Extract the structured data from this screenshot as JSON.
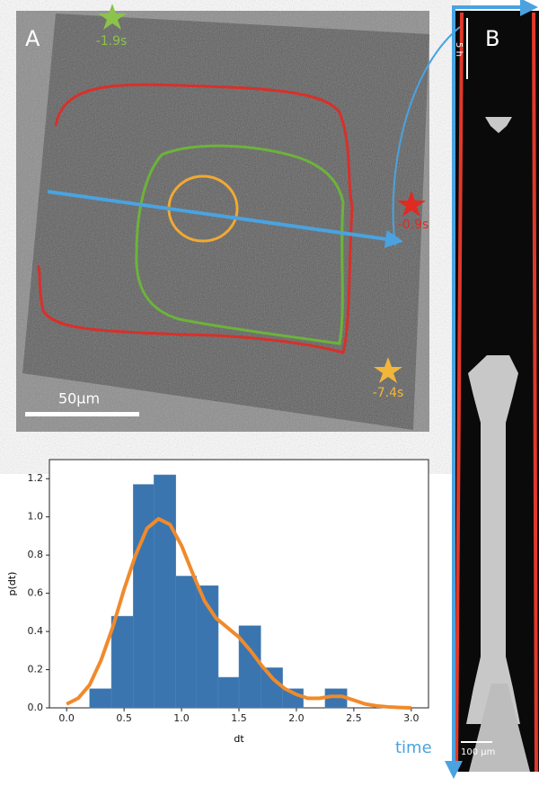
{
  "panel_a": {
    "label": "A",
    "annotations": [
      "-1.9s",
      "-0.9s",
      "-7.4s"
    ],
    "scale_bar": "50μm"
  },
  "panel_b": {
    "label": "B",
    "time_scale": "5 h",
    "scale_bar": "100 µm",
    "axis_label": "time"
  },
  "chart_data": {
    "type": "histogram",
    "bins": [
      0.2,
      0.39,
      0.58,
      0.76,
      0.95,
      1.13,
      1.32,
      1.5,
      1.69,
      1.88,
      2.06,
      2.25,
      2.44
    ],
    "values": [
      0.1,
      0.48,
      1.17,
      1.22,
      0.69,
      0.64,
      0.16,
      0.43,
      0.21,
      0.1,
      0,
      0.1
    ],
    "color": "#3a75af",
    "line": {
      "color": "#f08a2c",
      "x": [
        0,
        0.1,
        0.2,
        0.3,
        0.4,
        0.5,
        0.6,
        0.7,
        0.8,
        0.9,
        1.0,
        1.1,
        1.2,
        1.3,
        1.4,
        1.5,
        1.6,
        1.7,
        1.8,
        1.9,
        2.0,
        2.1,
        2.2,
        2.3,
        2.4,
        2.5,
        2.6,
        2.7,
        2.8,
        2.9,
        3.0
      ],
      "values": [
        0.02,
        0.05,
        0.12,
        0.25,
        0.42,
        0.62,
        0.8,
        0.94,
        0.99,
        0.96,
        0.85,
        0.7,
        0.56,
        0.47,
        0.42,
        0.37,
        0.3,
        0.22,
        0.15,
        0.1,
        0.07,
        0.05,
        0.05,
        0.06,
        0.06,
        0.04,
        0.02,
        0.01,
        0.005,
        0.002,
        0
      ]
    },
    "xlabel": "dt",
    "ylabel": "p(dt)",
    "xlim": [
      -0.15,
      3.15
    ],
    "ylim": [
      0,
      1.3
    ],
    "xticks": [
      {
        "value": 0,
        "label": "0.0"
      },
      {
        "value": 0.5,
        "label": "0.5"
      },
      {
        "value": 1,
        "label": "1.0"
      },
      {
        "value": 1.5,
        "label": "1.5"
      },
      {
        "value": 2,
        "label": "2.0"
      },
      {
        "value": 2.5,
        "label": "2.5"
      },
      {
        "value": 3,
        "label": "3.0"
      }
    ],
    "yticks": [
      {
        "value": 0,
        "label": "0.0"
      },
      {
        "value": 0.2,
        "label": "0.2"
      },
      {
        "value": 0.4,
        "label": "0.4"
      },
      {
        "value": 0.6,
        "label": "0.6"
      },
      {
        "value": 0.8,
        "label": "0.8"
      },
      {
        "value": 1,
        "label": "1.0"
      },
      {
        "value": 1.2,
        "label": "1.2"
      }
    ]
  }
}
